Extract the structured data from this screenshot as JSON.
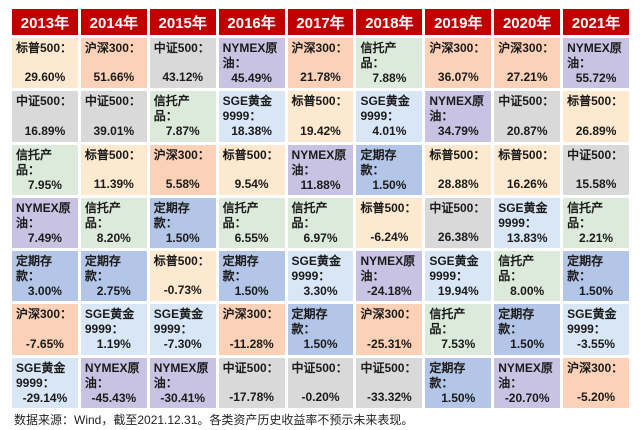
{
  "chart_data": {
    "type": "table",
    "columns": [
      "2013年",
      "2014年",
      "2015年",
      "2016年",
      "2017年",
      "2018年",
      "2019年",
      "2020年",
      "2021年"
    ],
    "rows": [
      [
        {
          "name": "标普500：",
          "ret": "29.60%",
          "asset": "sp500"
        },
        {
          "name": "沪深300：",
          "ret": "51.66%",
          "asset": "hs300"
        },
        {
          "name": "中证500：",
          "ret": "43.12%",
          "asset": "zz500"
        },
        {
          "name": "NYMEX原油：",
          "ret": "45.49%",
          "asset": "oil"
        },
        {
          "name": "沪深300：",
          "ret": "21.78%",
          "asset": "hs300"
        },
        {
          "name": "信托产品：",
          "ret": "7.88%",
          "asset": "trust"
        },
        {
          "name": "沪深300：",
          "ret": "36.07%",
          "asset": "hs300"
        },
        {
          "name": "沪深300：",
          "ret": "27.21%",
          "asset": "hs300"
        },
        {
          "name": "NYMEX原油：",
          "ret": "55.72%",
          "asset": "oil"
        }
      ],
      [
        {
          "name": "中证500：",
          "ret": "16.89%",
          "asset": "zz500"
        },
        {
          "name": "中证500：",
          "ret": "39.01%",
          "asset": "zz500"
        },
        {
          "name": "信托产品：",
          "ret": "7.87%",
          "asset": "trust"
        },
        {
          "name": "SGE黄金9999：",
          "ret": "18.38%",
          "asset": "gold"
        },
        {
          "name": "标普500：",
          "ret": "19.42%",
          "asset": "sp500"
        },
        {
          "name": "SGE黄金9999：",
          "ret": "4.01%",
          "asset": "gold"
        },
        {
          "name": "NYMEX原油：",
          "ret": "34.79%",
          "asset": "oil"
        },
        {
          "name": "中证500：",
          "ret": "20.87%",
          "asset": "zz500"
        },
        {
          "name": "标普500：",
          "ret": "26.89%",
          "asset": "sp500"
        }
      ],
      [
        {
          "name": "信托产品：",
          "ret": "7.95%",
          "asset": "trust"
        },
        {
          "name": "标普500：",
          "ret": "11.39%",
          "asset": "sp500"
        },
        {
          "name": "沪深300：",
          "ret": "5.58%",
          "asset": "hs300"
        },
        {
          "name": "标普500：",
          "ret": "9.54%",
          "asset": "sp500"
        },
        {
          "name": "NYMEX原油：",
          "ret": "11.88%",
          "asset": "oil"
        },
        {
          "name": "定期存款：",
          "ret": "1.50%",
          "asset": "deposit"
        },
        {
          "name": "标普500：",
          "ret": "28.88%",
          "asset": "sp500"
        },
        {
          "name": "标普500：",
          "ret": "16.26%",
          "asset": "sp500"
        },
        {
          "name": "中证500：",
          "ret": "15.58%",
          "asset": "zz500"
        }
      ],
      [
        {
          "name": "NYMEX原油：",
          "ret": "7.49%",
          "asset": "oil"
        },
        {
          "name": "信托产品：",
          "ret": "8.20%",
          "asset": "trust"
        },
        {
          "name": "定期存款：",
          "ret": "1.50%",
          "asset": "deposit"
        },
        {
          "name": "信托产品：",
          "ret": "6.55%",
          "asset": "trust"
        },
        {
          "name": "信托产品：",
          "ret": "6.97%",
          "asset": "trust"
        },
        {
          "name": "标普500：",
          "ret": "-6.24%",
          "asset": "sp500"
        },
        {
          "name": "中证500：",
          "ret": "26.38%",
          "asset": "zz500"
        },
        {
          "name": "SGE黄金9999：",
          "ret": "13.83%",
          "asset": "gold"
        },
        {
          "name": "信托产品：",
          "ret": "2.21%",
          "asset": "trust"
        }
      ],
      [
        {
          "name": "定期存款：",
          "ret": "3.00%",
          "asset": "deposit"
        },
        {
          "name": "定期存款：",
          "ret": "2.75%",
          "asset": "deposit"
        },
        {
          "name": "标普500：",
          "ret": "-0.73%",
          "asset": "sp500"
        },
        {
          "name": "定期存款：",
          "ret": "1.50%",
          "asset": "deposit"
        },
        {
          "name": "SGE黄金9999：",
          "ret": "3.30%",
          "asset": "gold"
        },
        {
          "name": "NYMEX原油：",
          "ret": "-24.18%",
          "asset": "oil"
        },
        {
          "name": "SGE黄金9999：",
          "ret": "19.94%",
          "asset": "gold"
        },
        {
          "name": "信托产品：",
          "ret": "8.00%",
          "asset": "trust"
        },
        {
          "name": "定期存款：",
          "ret": "1.50%",
          "asset": "deposit"
        }
      ],
      [
        {
          "name": "沪深300：",
          "ret": "-7.65%",
          "asset": "hs300"
        },
        {
          "name": "SGE黄金9999：",
          "ret": "1.19%",
          "asset": "gold"
        },
        {
          "name": "SGE黄金9999：",
          "ret": "-7.30%",
          "asset": "gold"
        },
        {
          "name": "沪深300：",
          "ret": "-11.28%",
          "asset": "hs300"
        },
        {
          "name": "定期存款：",
          "ret": "1.50%",
          "asset": "deposit"
        },
        {
          "name": "沪深300：",
          "ret": "-25.31%",
          "asset": "hs300"
        },
        {
          "name": "信托产品：",
          "ret": "7.53%",
          "asset": "trust"
        },
        {
          "name": "定期存款：",
          "ret": "1.50%",
          "asset": "deposit"
        },
        {
          "name": "SGE黄金9999：",
          "ret": "-3.55%",
          "asset": "gold"
        }
      ],
      [
        {
          "name": "SGE黄金9999：",
          "ret": "-29.14%",
          "asset": "gold"
        },
        {
          "name": "NYMEX原油：",
          "ret": "-45.43%",
          "asset": "oil"
        },
        {
          "name": "NYMEX原油：",
          "ret": "-30.41%",
          "asset": "oil"
        },
        {
          "name": "中证500：",
          "ret": "-17.78%",
          "asset": "zz500"
        },
        {
          "name": "中证500：",
          "ret": "-0.20%",
          "asset": "zz500"
        },
        {
          "name": "中证500：",
          "ret": "-33.32%",
          "asset": "zz500"
        },
        {
          "name": "定期存款：",
          "ret": "1.50%",
          "asset": "deposit"
        },
        {
          "name": "NYMEX原油：",
          "ret": "-20.70%",
          "asset": "oil"
        },
        {
          "name": "沪深300：",
          "ret": "-5.20%",
          "asset": "hs300"
        }
      ]
    ],
    "colors": {
      "header": "#c00000",
      "sp500": "#fde9cf",
      "hs300": "#fbd2b8",
      "zz500": "#d9d9d9",
      "oil": "#c9c3e3",
      "gold": "#d8e6f5",
      "trust": "#dceadb",
      "deposit": "#b4c6e7"
    }
  },
  "footer": "数据来源：Wind，截至2021.12.31。各类资产历史收益率不预示未来表现。"
}
